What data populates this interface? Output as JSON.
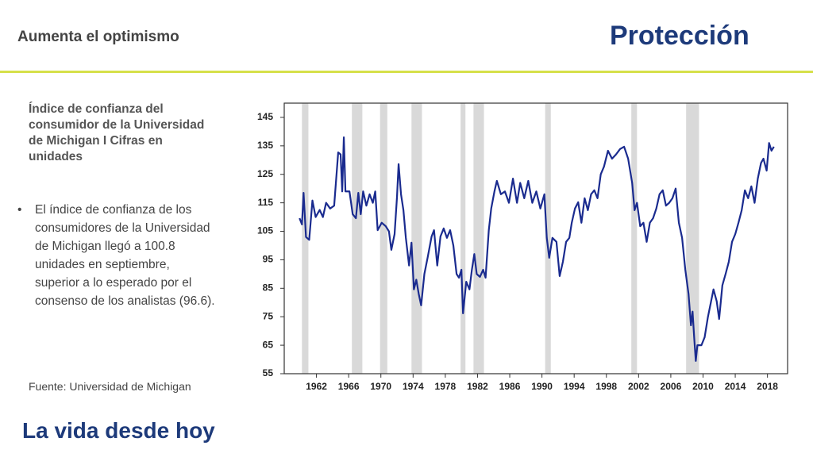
{
  "slide": {
    "title": "Aumenta el optimismo",
    "logo": "Protección",
    "heading": "Índice de confianza del consumidor de la Universidad de Michigan I Cifras en unidades",
    "bullet": "El índice de confianza de los consumidores de la Universidad de Michigan llegó a 100.8 unidades en septiembre, superior a lo esperado por el consenso de los analistas (96.6).",
    "source": "Fuente: Universidad de Michigan",
    "tagline": "La vida desde hoy"
  },
  "chart_data": {
    "type": "line",
    "x": [
      1959.9,
      1960.2,
      1960.4,
      1960.7,
      1961.1,
      1961.5,
      1961.9,
      1962.4,
      1962.8,
      1963.2,
      1963.7,
      1964.2,
      1964.7,
      1965.0,
      1965.2,
      1965.4,
      1965.6,
      1966.1,
      1966.5,
      1966.9,
      1967.2,
      1967.5,
      1967.8,
      1968.2,
      1968.6,
      1969.0,
      1969.3,
      1969.6,
      1970.1,
      1970.6,
      1971.0,
      1971.3,
      1971.7,
      1972.0,
      1972.2,
      1972.5,
      1972.8,
      1973.1,
      1973.5,
      1973.8,
      1974.1,
      1974.4,
      1974.7,
      1975.0,
      1975.4,
      1975.8,
      1976.3,
      1976.6,
      1977.0,
      1977.4,
      1977.8,
      1978.2,
      1978.6,
      1979.0,
      1979.4,
      1979.7,
      1980.0,
      1980.2,
      1980.6,
      1981.0,
      1981.3,
      1981.6,
      1981.9,
      1982.3,
      1982.7,
      1983.0,
      1983.4,
      1983.7,
      1984.1,
      1984.4,
      1984.9,
      1985.4,
      1985.9,
      1986.4,
      1986.9,
      1987.3,
      1987.8,
      1988.3,
      1988.8,
      1989.3,
      1989.8,
      1990.3,
      1990.6,
      1990.9,
      1991.3,
      1991.8,
      1992.2,
      1992.6,
      1993.0,
      1993.4,
      1993.7,
      1994.1,
      1994.5,
      1994.9,
      1995.3,
      1995.7,
      1996.1,
      1996.5,
      1996.9,
      1997.3,
      1997.7,
      1998.2,
      1998.7,
      1999.2,
      1999.7,
      2000.2,
      2000.7,
      2001.2,
      2001.5,
      2001.8,
      2002.2,
      2002.6,
      2003.0,
      2003.4,
      2003.8,
      2004.2,
      2004.6,
      2005.0,
      2005.4,
      2005.8,
      2006.2,
      2006.6,
      2007.0,
      2007.4,
      2007.8,
      2008.2,
      2008.5,
      2008.7,
      2008.9,
      2009.1,
      2009.3,
      2009.8,
      2010.2,
      2010.6,
      2011.0,
      2011.3,
      2011.7,
      2012.0,
      2012.4,
      2012.8,
      2013.2,
      2013.6,
      2014.0,
      2014.4,
      2014.8,
      2015.2,
      2015.6,
      2016.0,
      2016.4,
      2016.8,
      2017.2,
      2017.5,
      2017.9,
      2018.2,
      2018.5,
      2018.8
    ],
    "series": [
      {
        "color": "#1a2b8f",
        "values": [
          109.6,
          107.4,
          118.5,
          103,
          102,
          115.8,
          110,
          112.5,
          110,
          115,
          113,
          114,
          132.7,
          132,
          119,
          138,
          119,
          119,
          111,
          109.6,
          118.5,
          111,
          119,
          114,
          118,
          115,
          119,
          105.4,
          108,
          106.8,
          105,
          98.5,
          104,
          117,
          128.6,
          118,
          112.4,
          102.7,
          93,
          101,
          84.6,
          88,
          83,
          79,
          90,
          95.7,
          103.2,
          105.4,
          93,
          103.2,
          106,
          102.7,
          105.4,
          100,
          90,
          88.7,
          91.5,
          76.2,
          87.3,
          84.6,
          91.5,
          97,
          90,
          89,
          91.5,
          88.7,
          105.4,
          113,
          119,
          122.7,
          118,
          119,
          115,
          123.5,
          115,
          122,
          116.6,
          122.7,
          115,
          119,
          113,
          118,
          102.7,
          95.7,
          102.7,
          101.3,
          89.3,
          94.3,
          101.3,
          102.7,
          108,
          113,
          115.2,
          108,
          116.6,
          112.4,
          118,
          119.4,
          116.6,
          125,
          127.7,
          133.3,
          130.5,
          132,
          133.9,
          134.7,
          130.5,
          122,
          112.4,
          115,
          106.8,
          108,
          101.3,
          108,
          109.6,
          113,
          118,
          119.4,
          114,
          115,
          116.6,
          120,
          108,
          102.7,
          91.5,
          83,
          72,
          76.8,
          67.8,
          59.5,
          65,
          65,
          67.8,
          74.8,
          80.4,
          84.6,
          80.4,
          74.2,
          86,
          90,
          94.3,
          101.3,
          104,
          108,
          112.4,
          119.4,
          116.6,
          120.8,
          115,
          123.5,
          129,
          130.5,
          126.3,
          136,
          133.3,
          134.7
        ]
      }
    ],
    "shaded_periods": [
      [
        1960.2,
        1961.0
      ],
      [
        1966.4,
        1967.7
      ],
      [
        1969.9,
        1970.8
      ],
      [
        1973.8,
        1975.1
      ],
      [
        1979.9,
        1980.5
      ],
      [
        1981.5,
        1982.8
      ],
      [
        1990.4,
        1991.1
      ],
      [
        2001.1,
        2001.8
      ],
      [
        2007.9,
        2009.5
      ]
    ],
    "shade_color": "#d9d9d9",
    "xlim": [
      1958,
      2020.5
    ],
    "ylim": [
      55,
      150
    ],
    "xticks": [
      1962,
      1966,
      1970,
      1974,
      1978,
      1982,
      1986,
      1990,
      1994,
      1998,
      2002,
      2006,
      2010,
      2014,
      2018
    ],
    "yticks": [
      55,
      65,
      75,
      85,
      95,
      105,
      115,
      125,
      135,
      145
    ]
  }
}
